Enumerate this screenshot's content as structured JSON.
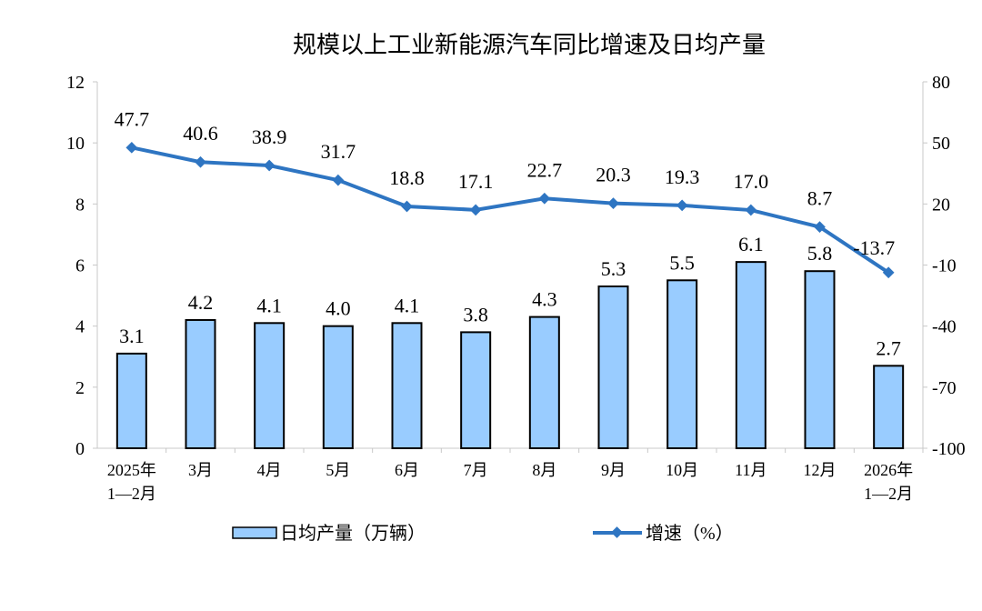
{
  "chart_data": {
    "type": "bar+line",
    "title": "规模以上工业新能源汽车同比增速及日均产量",
    "categories": [
      [
        "2025年",
        "1—2月"
      ],
      [
        "3月"
      ],
      [
        "4月"
      ],
      [
        "5月"
      ],
      [
        "6月"
      ],
      [
        "7月"
      ],
      [
        "8月"
      ],
      [
        "9月"
      ],
      [
        "10月"
      ],
      [
        "11月"
      ],
      [
        "12月"
      ],
      [
        "2026年",
        "1—2月"
      ]
    ],
    "series": [
      {
        "name": "日均产量（万辆）",
        "type": "bar",
        "axis": "left",
        "color": "#99ccff",
        "values": [
          3.1,
          4.2,
          4.1,
          4.0,
          4.1,
          3.8,
          4.3,
          5.3,
          5.5,
          6.1,
          5.8,
          2.7
        ]
      },
      {
        "name": "增速（%）",
        "type": "line",
        "axis": "right",
        "color": "#2e75c2",
        "values": [
          47.7,
          40.6,
          38.9,
          31.7,
          18.8,
          17.1,
          22.7,
          20.3,
          19.3,
          17.0,
          8.7,
          -13.7
        ]
      }
    ],
    "left_axis": {
      "ylim": [
        0,
        12
      ],
      "ticks": [
        0,
        2,
        4,
        6,
        8,
        10,
        12
      ]
    },
    "right_axis": {
      "ylim": [
        -100,
        80
      ],
      "ticks": [
        -100,
        -70,
        -40,
        -10,
        20,
        50,
        80
      ]
    },
    "grid": false,
    "legend": "bottom"
  }
}
